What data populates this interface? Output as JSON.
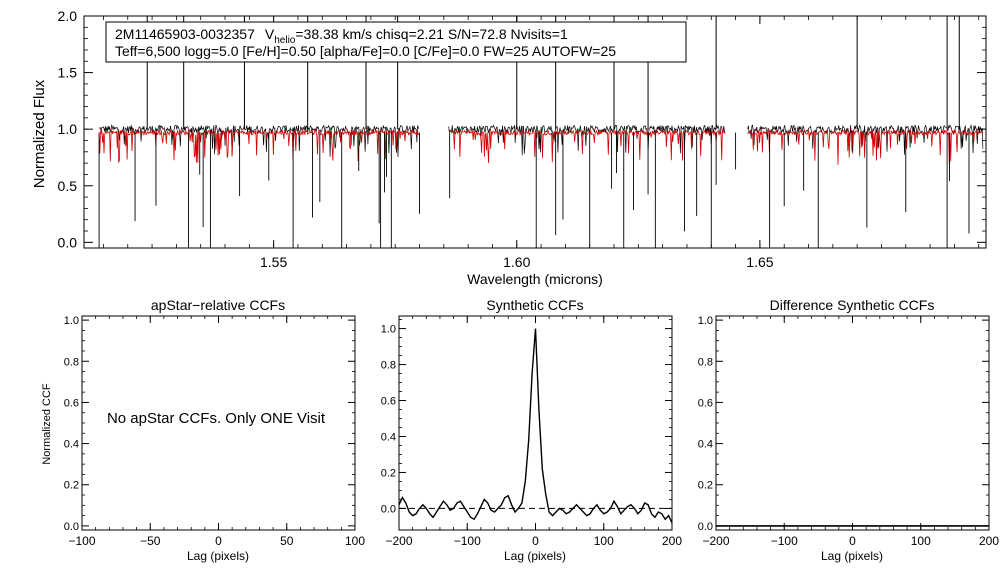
{
  "chart_data": [
    {
      "type": "line",
      "id": "spectrum",
      "xlabel": "Wavelength (microns)",
      "ylabel": "Normalized Flux",
      "xlim": [
        1.511,
        1.6965
      ],
      "ylim": [
        -0.05,
        2.0
      ],
      "x_ticks": [
        1.55,
        1.6,
        1.65
      ],
      "x_tick_labels": [
        "1.55",
        "1.60",
        "1.65"
      ],
      "y_ticks": [
        0.0,
        0.5,
        1.0,
        1.5,
        2.0
      ],
      "y_tick_labels": [
        "0.0",
        "0.5",
        "1.0",
        "1.5",
        "2.0"
      ],
      "chips": [
        [
          1.5141,
          1.58
        ],
        [
          1.586,
          1.643
        ],
        [
          1.6475,
          1.696
        ]
      ],
      "series": [
        {
          "name": "observed spectrum",
          "color": "#000000",
          "level": 1.0
        },
        {
          "name": "best-fit synthetic model",
          "color": "#d40000",
          "level": 0.97
        }
      ],
      "label_box": {
        "object_id": "2M11465903-0032357",
        "v_label": "V",
        "v_sub": "helio",
        "v_rest": "=38.38 km/s  chisq=2.21  S/N=72.8  Nvisits=1",
        "line2": "Teff=6,500 logg=5.0 [Fe/H]=0.50 [alpha/Fe]=0.0 [C/Fe]=0.0 FW=25 AUTOFW=25"
      },
      "spikes_up": [
        1.524,
        1.5315,
        1.544,
        1.557,
        1.569,
        1.5755,
        1.6,
        1.608,
        1.62,
        1.627,
        1.641,
        1.67,
        1.6885,
        1.691
      ],
      "spikes_down": [
        1.5141,
        1.5215,
        1.5258,
        1.5325,
        1.5348,
        1.5355,
        1.537,
        1.543,
        1.549,
        1.554,
        1.558,
        1.5595,
        1.564,
        1.5675,
        1.5717,
        1.572,
        1.5728,
        1.5732,
        1.5742,
        1.58,
        1.5862,
        1.604,
        1.608,
        1.6095,
        1.615,
        1.6195,
        1.6205,
        1.622,
        1.624,
        1.627,
        1.6285,
        1.6345,
        1.637,
        1.64,
        1.641,
        1.645,
        1.652,
        1.655,
        1.659,
        1.662,
        1.672,
        1.68,
        1.6885,
        1.689,
        1.693
      ]
    },
    {
      "type": "line",
      "id": "apstar-ccf",
      "title": "apStar−relative CCFs",
      "xlabel": "Lag (pixels)",
      "ylabel": "Normalized CCF",
      "xlim": [
        -100,
        100
      ],
      "ylim": [
        -0.02,
        1.02
      ],
      "x_ticks": [
        -100,
        -50,
        0,
        50,
        100
      ],
      "x_tick_labels": [
        "−100",
        "−50",
        "0",
        "50",
        "100"
      ],
      "y_ticks": [
        0.0,
        0.2,
        0.4,
        0.6,
        0.8,
        1.0
      ],
      "y_tick_labels": [
        "0.0",
        "0.2",
        "0.4",
        "0.6",
        "0.8",
        "1.0"
      ],
      "annotation": "No apStar CCFs.  Only ONE Visit",
      "series": []
    },
    {
      "type": "line",
      "id": "synthetic-ccf",
      "title": "Synthetic CCFs",
      "xlabel": "Lag (pixels)",
      "ylabel": "",
      "xlim": [
        -200,
        200
      ],
      "ylim": [
        -0.12,
        1.07
      ],
      "x_ticks": [
        -200,
        -100,
        0,
        100,
        200
      ],
      "x_tick_labels": [
        "−200",
        "−100",
        "0",
        "100",
        "200"
      ],
      "y_ticks": [
        0.0,
        0.2,
        0.4,
        0.6,
        0.8,
        1.0
      ],
      "y_tick_labels": [
        "0.0",
        "0.2",
        "0.4",
        "0.6",
        "0.8",
        "1.0"
      ],
      "zero_line": 0.0,
      "series": [
        {
          "name": "synthetic CCF",
          "x": [
            -200,
            -195,
            -190,
            -185,
            -180,
            -175,
            -170,
            -165,
            -160,
            -155,
            -150,
            -145,
            -140,
            -135,
            -130,
            -125,
            -120,
            -115,
            -110,
            -105,
            -100,
            -95,
            -90,
            -85,
            -80,
            -75,
            -70,
            -65,
            -60,
            -55,
            -50,
            -45,
            -40,
            -35,
            -30,
            -25,
            -20,
            -15,
            -10,
            -5,
            0,
            5,
            10,
            15,
            20,
            25,
            30,
            35,
            40,
            45,
            50,
            55,
            60,
            65,
            70,
            75,
            80,
            85,
            90,
            95,
            100,
            105,
            110,
            115,
            120,
            125,
            130,
            135,
            140,
            145,
            150,
            155,
            160,
            165,
            170,
            175,
            180,
            185,
            190,
            195,
            200
          ],
          "y": [
            0.02,
            0.06,
            0.03,
            -0.02,
            -0.04,
            -0.03,
            0.0,
            0.02,
            0.0,
            -0.03,
            -0.05,
            -0.02,
            0.01,
            0.04,
            0.02,
            -0.01,
            0.0,
            0.03,
            0.04,
            0.01,
            -0.02,
            -0.05,
            -0.06,
            -0.03,
            0.01,
            0.05,
            0.03,
            -0.01,
            -0.02,
            0.0,
            0.02,
            0.06,
            0.07,
            0.02,
            -0.02,
            0.0,
            0.03,
            0.15,
            0.38,
            0.75,
            1.0,
            0.55,
            0.22,
            0.08,
            -0.02,
            -0.04,
            -0.02,
            0.0,
            -0.01,
            -0.03,
            -0.02,
            0.0,
            0.02,
            0.0,
            -0.02,
            -0.04,
            -0.03,
            0.0,
            0.02,
            -0.01,
            -0.03,
            -0.02,
            0.0,
            0.04,
            0.01,
            -0.03,
            -0.01,
            0.01,
            0.02,
            0.0,
            -0.03,
            -0.01,
            0.03,
            0.02,
            -0.03,
            -0.05,
            -0.02,
            -0.03,
            -0.06,
            -0.04,
            -0.08
          ]
        }
      ]
    },
    {
      "type": "line",
      "id": "diff-ccf",
      "title": "Difference Synthetic CCFs",
      "xlabel": "Lag (pixels)",
      "ylabel": "",
      "xlim": [
        -200,
        200
      ],
      "ylim": [
        -0.02,
        1.02
      ],
      "x_ticks": [
        -200,
        -100,
        0,
        100,
        200
      ],
      "x_tick_labels": [
        "−200",
        "−100",
        "0",
        "100",
        "200"
      ],
      "y_ticks": [
        0.0,
        0.2,
        0.4,
        0.6,
        0.8,
        1.0
      ],
      "y_tick_labels": [
        "0.0",
        "0.2",
        "0.4",
        "0.6",
        "0.8",
        "1.0"
      ],
      "series": [
        {
          "name": "difference CCF",
          "x": [
            -200,
            200
          ],
          "y": [
            0.0,
            0.0
          ]
        }
      ]
    }
  ]
}
